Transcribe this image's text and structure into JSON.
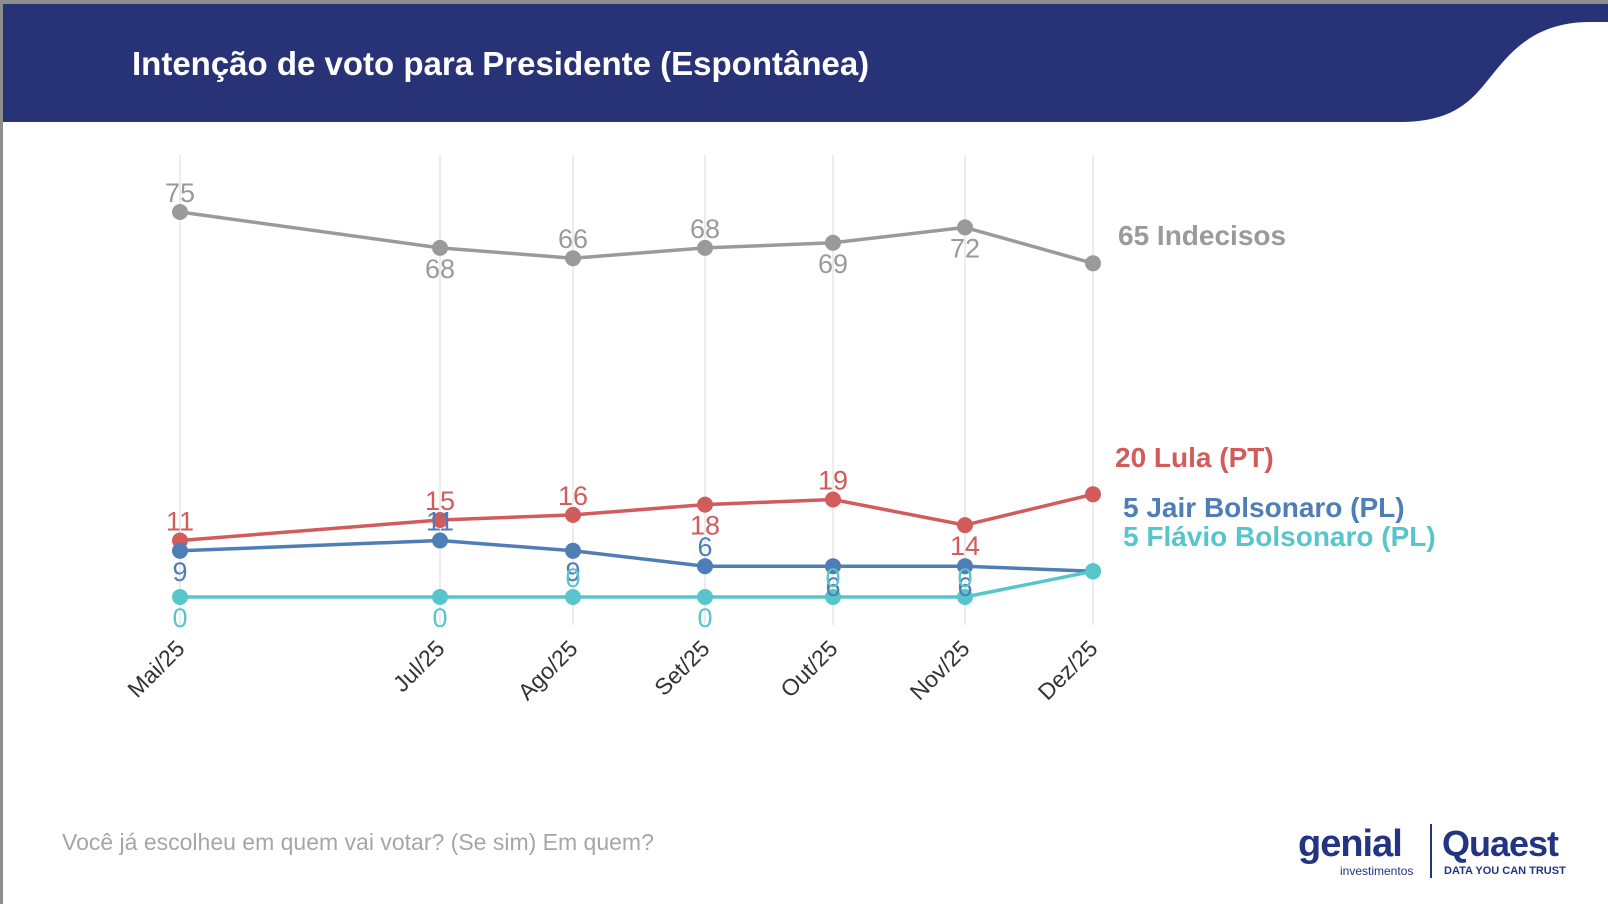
{
  "header": {
    "title": "Intenção de voto para Presidente (Espontânea)",
    "background_color": "#283377"
  },
  "footnote": "Você já escolheu em quem vai votar? (Se sim) Em quem?",
  "logos": {
    "genial": "genial",
    "genial_sub": "investimentos",
    "quaest": "Quaest",
    "quaest_sub": "DATA YOU CAN TRUST"
  },
  "chart_data": {
    "type": "line",
    "title": "Intenção de voto para Presidente (Espontânea)",
    "categories": [
      "Mai/25",
      "Jul/25",
      "Ago/25",
      "Set/25",
      "Out/25",
      "Nov/25",
      "Dez/25"
    ],
    "series": [
      {
        "name": "Indecisos",
        "color": "#9a9a9a",
        "values": [
          75,
          68,
          66,
          68,
          69,
          72,
          65
        ],
        "point_labels": [
          "75",
          "68",
          "66",
          "68",
          "69",
          "72",
          ""
        ],
        "label_pos": [
          "above",
          "below",
          "above",
          "above",
          "below",
          "below",
          ""
        ],
        "end_label": "65 Indecisos"
      },
      {
        "name": "Lula (PT)",
        "color": "#d25b5b",
        "values": [
          11,
          15,
          16,
          18,
          19,
          14,
          20
        ],
        "point_labels": [
          "11",
          "15",
          "16",
          "18",
          "19",
          "14",
          ""
        ],
        "label_pos": [
          "above",
          "above",
          "above",
          "below",
          "above",
          "below",
          ""
        ],
        "end_label": "20 Lula (PT)"
      },
      {
        "name": "Jair Bolsonaro (PL)",
        "color": "#4f7db5",
        "values": [
          9,
          11,
          9,
          6,
          6,
          6,
          5
        ],
        "point_labels": [
          "9",
          "11",
          "9",
          "6",
          "6",
          "6",
          ""
        ],
        "label_pos": [
          "below",
          "above",
          "below",
          "above",
          "below",
          "below",
          ""
        ],
        "end_label": "5 Jair Bolsonaro (PL)"
      },
      {
        "name": "Flávio Bolsonaro (PL)",
        "color": "#57c5cc",
        "values": [
          0,
          0,
          0,
          0,
          0,
          0,
          5
        ],
        "point_labels": [
          "0",
          "0",
          "0",
          "0",
          "0",
          "0",
          ""
        ],
        "label_pos": [
          "below",
          "below",
          "above",
          "below",
          "above",
          "above",
          ""
        ],
        "end_label": "5 Flávio Bolsonaro (PL)"
      }
    ],
    "ylim": [
      0,
      80
    ],
    "grid": "vertical",
    "legend": "none"
  }
}
